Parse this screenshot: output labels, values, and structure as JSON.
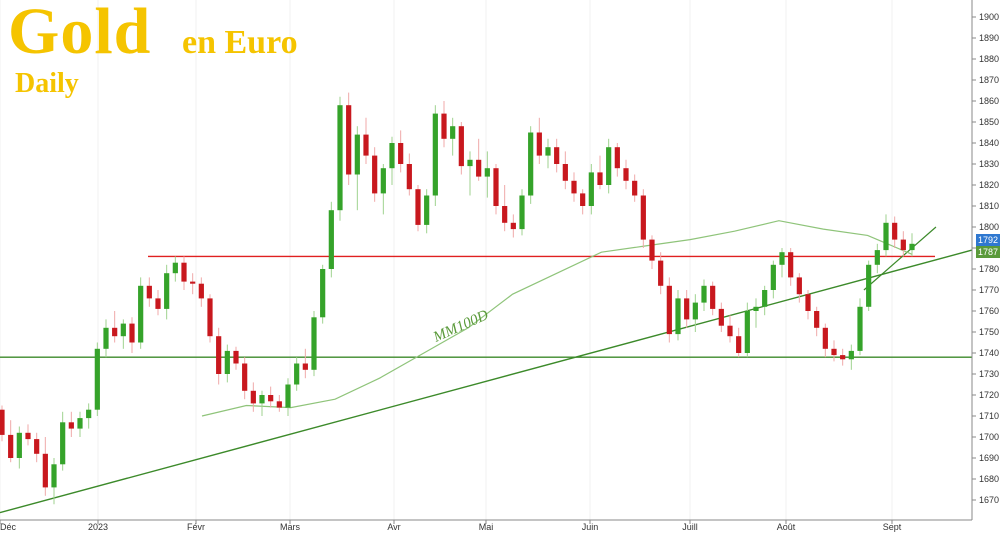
{
  "header": {
    "title": "Gold",
    "subtitle": "en Euro",
    "period": "Daily"
  },
  "chart_data": {
    "type": "candlestick",
    "title": "Gold en Euro",
    "timeframe": "Daily",
    "ylim": [
      1660,
      1905
    ],
    "y_ticks": [
      1670,
      1680,
      1690,
      1700,
      1710,
      1720,
      1730,
      1740,
      1750,
      1760,
      1770,
      1780,
      1790,
      1800,
      1810,
      1820,
      1830,
      1840,
      1850,
      1860,
      1870,
      1880,
      1890,
      1900
    ],
    "x_ticks": [
      "Déc",
      "2023",
      "Févr",
      "Mars",
      "Avr",
      "Mai",
      "Juin",
      "Juill",
      "Août",
      "Sept"
    ],
    "last_price_labels": [
      {
        "value": "1792",
        "color": "#2f78d0"
      },
      {
        "value": "1787",
        "color": "#5a9a3a"
      }
    ],
    "moving_average": {
      "label": "MM100D",
      "color": "#8fc47a",
      "values": [
        1710,
        1715,
        1714,
        1718,
        1728,
        1740,
        1752,
        1768,
        1778,
        1788,
        1791,
        1794,
        1798,
        1803,
        1799,
        1796,
        1787
      ]
    },
    "horizontal_lines": [
      {
        "name": "resistance",
        "value": 1786,
        "color": "#e02020"
      },
      {
        "name": "support",
        "value": 1738,
        "color": "#3c8a2a"
      }
    ],
    "trendlines": [
      {
        "name": "long-term-uptrend",
        "from": [
          0,
          1664
        ],
        "to": [
          1,
          1789
        ],
        "color": "#3c8a2a"
      },
      {
        "name": "short-term-uptrend",
        "from": [
          0.86,
          1770
        ],
        "to": [
          0.93,
          1800
        ],
        "color": "#3c8a2a"
      }
    ],
    "candles": [
      [
        1713,
        1715,
        1698,
        1701
      ],
      [
        1701,
        1708,
        1688,
        1690
      ],
      [
        1690,
        1705,
        1685,
        1702
      ],
      [
        1702,
        1706,
        1696,
        1699
      ],
      [
        1699,
        1702,
        1688,
        1692
      ],
      [
        1692,
        1700,
        1672,
        1676
      ],
      [
        1676,
        1690,
        1668,
        1687
      ],
      [
        1687,
        1712,
        1684,
        1707
      ],
      [
        1707,
        1712,
        1700,
        1704
      ],
      [
        1704,
        1712,
        1700,
        1709
      ],
      [
        1709,
        1716,
        1704,
        1713
      ],
      [
        1713,
        1745,
        1710,
        1742
      ],
      [
        1742,
        1756,
        1738,
        1752
      ],
      [
        1752,
        1760,
        1745,
        1748
      ],
      [
        1748,
        1756,
        1742,
        1754
      ],
      [
        1754,
        1757,
        1740,
        1745
      ],
      [
        1745,
        1776,
        1742,
        1772
      ],
      [
        1772,
        1776,
        1762,
        1766
      ],
      [
        1766,
        1770,
        1758,
        1761
      ],
      [
        1761,
        1782,
        1756,
        1778
      ],
      [
        1778,
        1786,
        1774,
        1783
      ],
      [
        1783,
        1786,
        1770,
        1774
      ],
      [
        1774,
        1778,
        1768,
        1773
      ],
      [
        1773,
        1776,
        1762,
        1766
      ],
      [
        1766,
        1768,
        1745,
        1748
      ],
      [
        1748,
        1752,
        1725,
        1730
      ],
      [
        1730,
        1744,
        1726,
        1741
      ],
      [
        1741,
        1743,
        1732,
        1735
      ],
      [
        1735,
        1738,
        1718,
        1722
      ],
      [
        1722,
        1726,
        1712,
        1716
      ],
      [
        1716,
        1722,
        1710,
        1720
      ],
      [
        1720,
        1724,
        1714,
        1717
      ],
      [
        1717,
        1720,
        1712,
        1714
      ],
      [
        1714,
        1728,
        1710,
        1725
      ],
      [
        1725,
        1738,
        1722,
        1735
      ],
      [
        1735,
        1742,
        1728,
        1732
      ],
      [
        1732,
        1760,
        1729,
        1757
      ],
      [
        1757,
        1782,
        1754,
        1780
      ],
      [
        1780,
        1812,
        1776,
        1808
      ],
      [
        1808,
        1862,
        1803,
        1858
      ],
      [
        1858,
        1864,
        1820,
        1825
      ],
      [
        1825,
        1848,
        1808,
        1844
      ],
      [
        1844,
        1852,
        1830,
        1834
      ],
      [
        1834,
        1838,
        1812,
        1816
      ],
      [
        1816,
        1830,
        1806,
        1828
      ],
      [
        1828,
        1843,
        1820,
        1840
      ],
      [
        1840,
        1846,
        1826,
        1830
      ],
      [
        1830,
        1835,
        1815,
        1818
      ],
      [
        1818,
        1820,
        1798,
        1801
      ],
      [
        1801,
        1818,
        1797,
        1815
      ],
      [
        1815,
        1858,
        1810,
        1854
      ],
      [
        1854,
        1860,
        1838,
        1842
      ],
      [
        1842,
        1852,
        1834,
        1848
      ],
      [
        1848,
        1850,
        1825,
        1829
      ],
      [
        1829,
        1836,
        1815,
        1832
      ],
      [
        1832,
        1842,
        1822,
        1824
      ],
      [
        1824,
        1836,
        1814,
        1828
      ],
      [
        1828,
        1830,
        1806,
        1810
      ],
      [
        1810,
        1820,
        1798,
        1802
      ],
      [
        1802,
        1806,
        1795,
        1799
      ],
      [
        1799,
        1818,
        1796,
        1815
      ],
      [
        1815,
        1848,
        1811,
        1845
      ],
      [
        1845,
        1852,
        1830,
        1834
      ],
      [
        1834,
        1842,
        1828,
        1838
      ],
      [
        1838,
        1842,
        1826,
        1830
      ],
      [
        1830,
        1836,
        1818,
        1822
      ],
      [
        1822,
        1826,
        1812,
        1816
      ],
      [
        1816,
        1818,
        1806,
        1810
      ],
      [
        1810,
        1830,
        1806,
        1826
      ],
      [
        1826,
        1834,
        1818,
        1820
      ],
      [
        1820,
        1842,
        1816,
        1838
      ],
      [
        1838,
        1840,
        1824,
        1828
      ],
      [
        1828,
        1832,
        1818,
        1822
      ],
      [
        1822,
        1825,
        1812,
        1815
      ],
      [
        1815,
        1818,
        1790,
        1794
      ],
      [
        1794,
        1796,
        1780,
        1784
      ],
      [
        1784,
        1788,
        1768,
        1772
      ],
      [
        1772,
        1776,
        1745,
        1749
      ],
      [
        1749,
        1770,
        1746,
        1766
      ],
      [
        1766,
        1770,
        1752,
        1756
      ],
      [
        1756,
        1768,
        1750,
        1764
      ],
      [
        1764,
        1775,
        1760,
        1772
      ],
      [
        1772,
        1774,
        1758,
        1761
      ],
      [
        1761,
        1764,
        1750,
        1753
      ],
      [
        1753,
        1758,
        1745,
        1748
      ],
      [
        1748,
        1752,
        1738,
        1740
      ],
      [
        1740,
        1764,
        1738,
        1760
      ],
      [
        1760,
        1766,
        1752,
        1762
      ],
      [
        1762,
        1772,
        1758,
        1770
      ],
      [
        1770,
        1784,
        1766,
        1782
      ],
      [
        1782,
        1790,
        1776,
        1788
      ],
      [
        1788,
        1790,
        1772,
        1776
      ],
      [
        1776,
        1778,
        1764,
        1768
      ],
      [
        1768,
        1770,
        1756,
        1760
      ],
      [
        1760,
        1762,
        1748,
        1752
      ],
      [
        1752,
        1754,
        1738,
        1742
      ],
      [
        1742,
        1746,
        1736,
        1739
      ],
      [
        1739,
        1742,
        1734,
        1737
      ],
      [
        1737,
        1744,
        1732,
        1741
      ],
      [
        1741,
        1766,
        1739,
        1762
      ],
      [
        1762,
        1784,
        1760,
        1782
      ],
      [
        1782,
        1792,
        1778,
        1789
      ],
      [
        1789,
        1806,
        1786,
        1802
      ],
      [
        1802,
        1805,
        1790,
        1794
      ],
      [
        1794,
        1798,
        1786,
        1789
      ],
      [
        1789,
        1797,
        1786,
        1792
      ]
    ]
  }
}
